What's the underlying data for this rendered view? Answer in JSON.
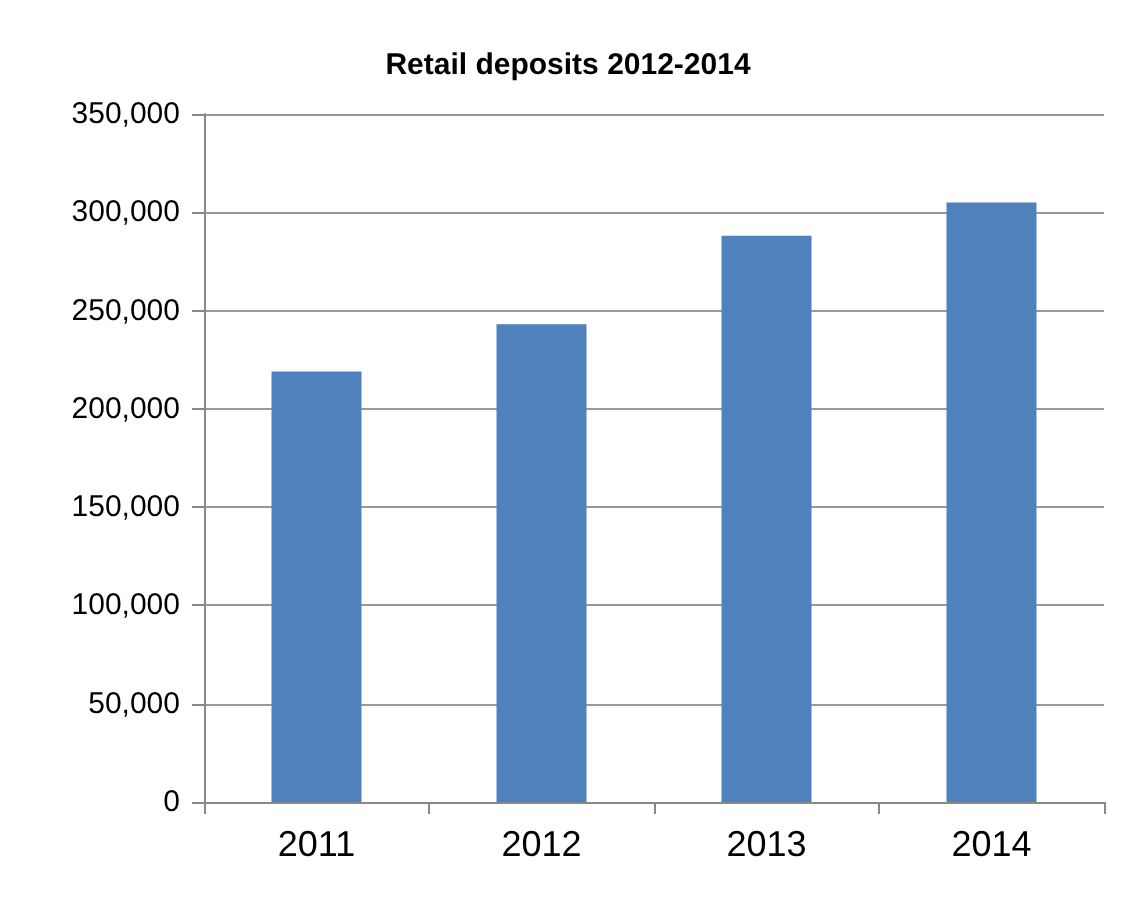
{
  "chart_data": {
    "type": "bar",
    "title": "Retail deposits 2012-2014",
    "categories": [
      "2011",
      "2012",
      "2013",
      "2014"
    ],
    "values": [
      219000,
      243000,
      288000,
      305000
    ],
    "color": "#4f81bd",
    "ylim": [
      0,
      350000
    ],
    "yticks": [
      0,
      {
        "value": 50000,
        "label": "50,000"
      },
      {
        "value": 100000,
        "label": "100,000"
      },
      {
        "value": 150000,
        "label": "150,000"
      },
      {
        "value": 200000,
        "label": "200,000"
      },
      {
        "value": 250000,
        "label": "250,000"
      },
      {
        "value": 300000,
        "label": "300,000"
      },
      {
        "value": 350000,
        "label": "350,000"
      }
    ],
    "grid": "y"
  }
}
